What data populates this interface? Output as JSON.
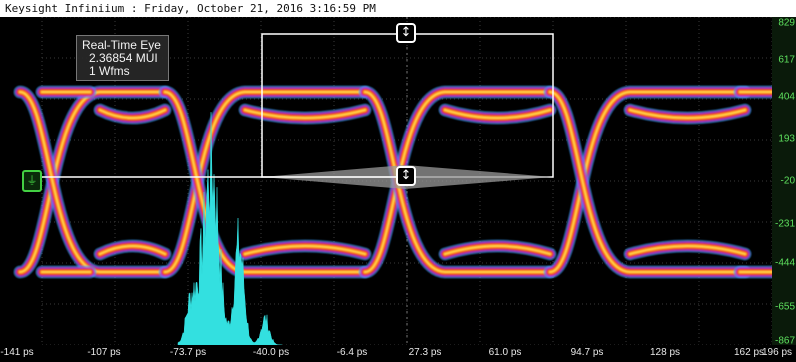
{
  "window": {
    "title": "Keysight Infiniium : Friday, October 21, 2016 3:16:59 PM"
  },
  "measurement_box": {
    "line1": "Real-Time Eye",
    "line2": "2.36854 MUI",
    "line3": "1 Wfms"
  },
  "x_axis": {
    "ticks": [
      "-141 ps",
      "-107 ps",
      "-73.7 ps",
      "-40.0 ps",
      "-6.4 ps",
      "27.3 ps",
      "61.0 ps",
      "94.7 ps",
      "128 ps",
      "162 ps",
      "196 ps"
    ]
  },
  "y_axis": {
    "ticks": [
      "829",
      "617",
      "404",
      "193",
      "-20",
      "-231",
      "-444",
      "-655",
      "-867"
    ]
  },
  "icons": {
    "top_marker": "vertical-resize-arrows-icon",
    "mid_marker": "vertical-resize-arrows-icon",
    "trigger": "trigger-level-icon"
  },
  "colors": {
    "background": "#000000",
    "grid": "#3a3a3a",
    "eye_hot": "#ffd84a",
    "eye_warm": "#ff8a1a",
    "eye_mid": "#e83030",
    "eye_cool": "#c02bd8",
    "eye_edge": "#3aa0ff",
    "histogram": "#33e0e0",
    "scale_text": "#5ee05e",
    "trigger": "#43d043"
  },
  "chart_data": {
    "type": "heatmap",
    "xlabel": "",
    "ylabel": "",
    "xlim": [
      -141,
      196
    ],
    "ylim": [
      -867,
      829
    ],
    "x_ticks": [
      -141,
      -107,
      -73.7,
      -40.0,
      -6.4,
      27.3,
      61.0,
      94.7,
      128,
      162,
      196
    ],
    "y_ticks": [
      829,
      617,
      404,
      193,
      -20,
      -231,
      -444,
      -655,
      -867
    ]
  }
}
